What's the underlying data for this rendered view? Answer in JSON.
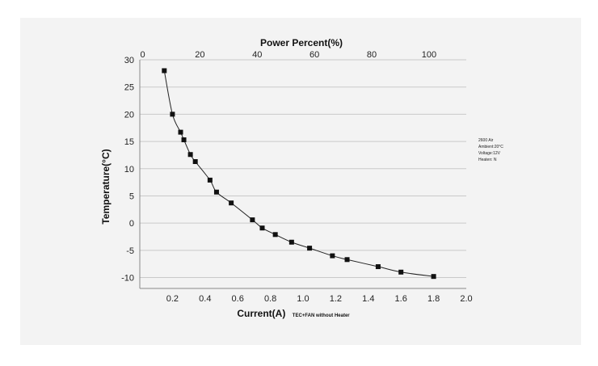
{
  "chart_data": {
    "type": "line",
    "title": "",
    "xlabel": "Current(A)",
    "xlabel_note": "TEC+FAN without Heater",
    "ylabel": "Temperature(°C)",
    "x2label": "Power Percent(%)",
    "xlim": [
      0.0,
      2.0
    ],
    "ylim": [
      -12,
      30
    ],
    "x2lim": [
      -1,
      113
    ],
    "grid": true,
    "marker": "square",
    "xticks": [
      "0.2",
      "0.4",
      "0.6",
      "0.8",
      "1.0",
      "1.2",
      "1.4",
      "1.6",
      "1.8",
      "2.0"
    ],
    "yticks": [
      "30",
      "25",
      "20",
      "15",
      "10",
      "5",
      "0",
      "-5",
      "-10"
    ],
    "x2ticks": [
      "0",
      "20",
      "40",
      "60",
      "80",
      "100"
    ],
    "annotation": [
      "2600 Air",
      "Ambient:20°C",
      "Voltage:12V",
      "Heaten: N"
    ],
    "series": [
      {
        "x": [
          0.15,
          0.2,
          0.25,
          0.27,
          0.31,
          0.34,
          0.43,
          0.47,
          0.56,
          0.69,
          0.75,
          0.83,
          0.93,
          1.04,
          1.18,
          1.27,
          1.46,
          1.6,
          1.8
        ],
        "y": [
          28.0,
          20.0,
          16.7,
          15.3,
          12.6,
          11.3,
          7.9,
          5.7,
          3.7,
          0.6,
          -0.9,
          -2.1,
          -3.5,
          -4.6,
          -6.0,
          -6.7,
          -8.0,
          -9.0,
          -9.8
        ]
      }
    ]
  }
}
